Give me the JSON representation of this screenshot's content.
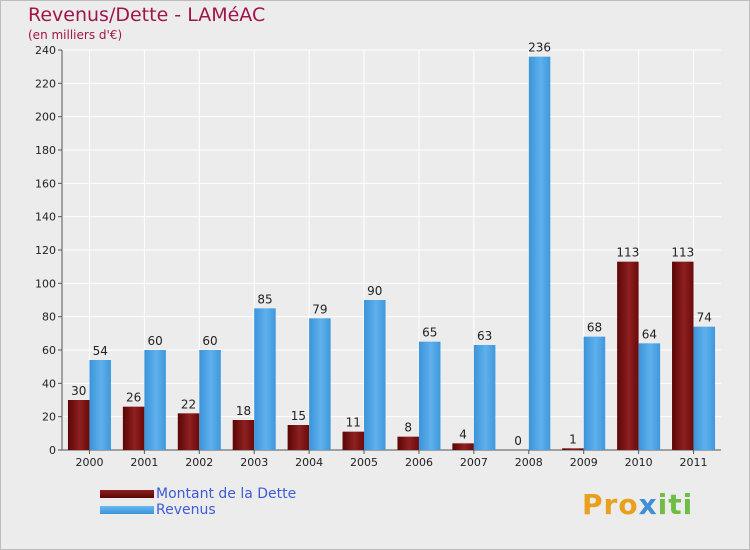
{
  "header": {
    "title": "Revenus/Dette - LAMéAC",
    "subtitle": "(en milliers d'€)"
  },
  "legend": {
    "items": [
      {
        "label": "Montant de la Dette",
        "color": "#6b0a0a"
      },
      {
        "label": "Revenus",
        "color": "#4aa3e3"
      }
    ]
  },
  "logo": {
    "part1": "Pro",
    "part2": "x",
    "part3": "iti"
  },
  "chart_data": {
    "type": "bar",
    "title": "Revenus/Dette - LAMéAC",
    "ylabel": "(en milliers d'€)",
    "categories": [
      "2000",
      "2001",
      "2002",
      "2003",
      "2004",
      "2005",
      "2006",
      "2007",
      "2008",
      "2009",
      "2010",
      "2011"
    ],
    "series": [
      {
        "name": "Montant de la Dette",
        "color": "#6b0a0a",
        "values": [
          30,
          26,
          22,
          18,
          15,
          11,
          8,
          4,
          0,
          1,
          113,
          113
        ]
      },
      {
        "name": "Revenus",
        "color": "#4aa3e3",
        "values": [
          54,
          60,
          60,
          85,
          79,
          90,
          65,
          63,
          236,
          68,
          64,
          74
        ]
      }
    ],
    "ylim": [
      0,
      240
    ],
    "yticks": [
      0,
      20,
      40,
      60,
      80,
      100,
      120,
      140,
      160,
      180,
      200,
      220,
      240
    ],
    "grid": true
  }
}
